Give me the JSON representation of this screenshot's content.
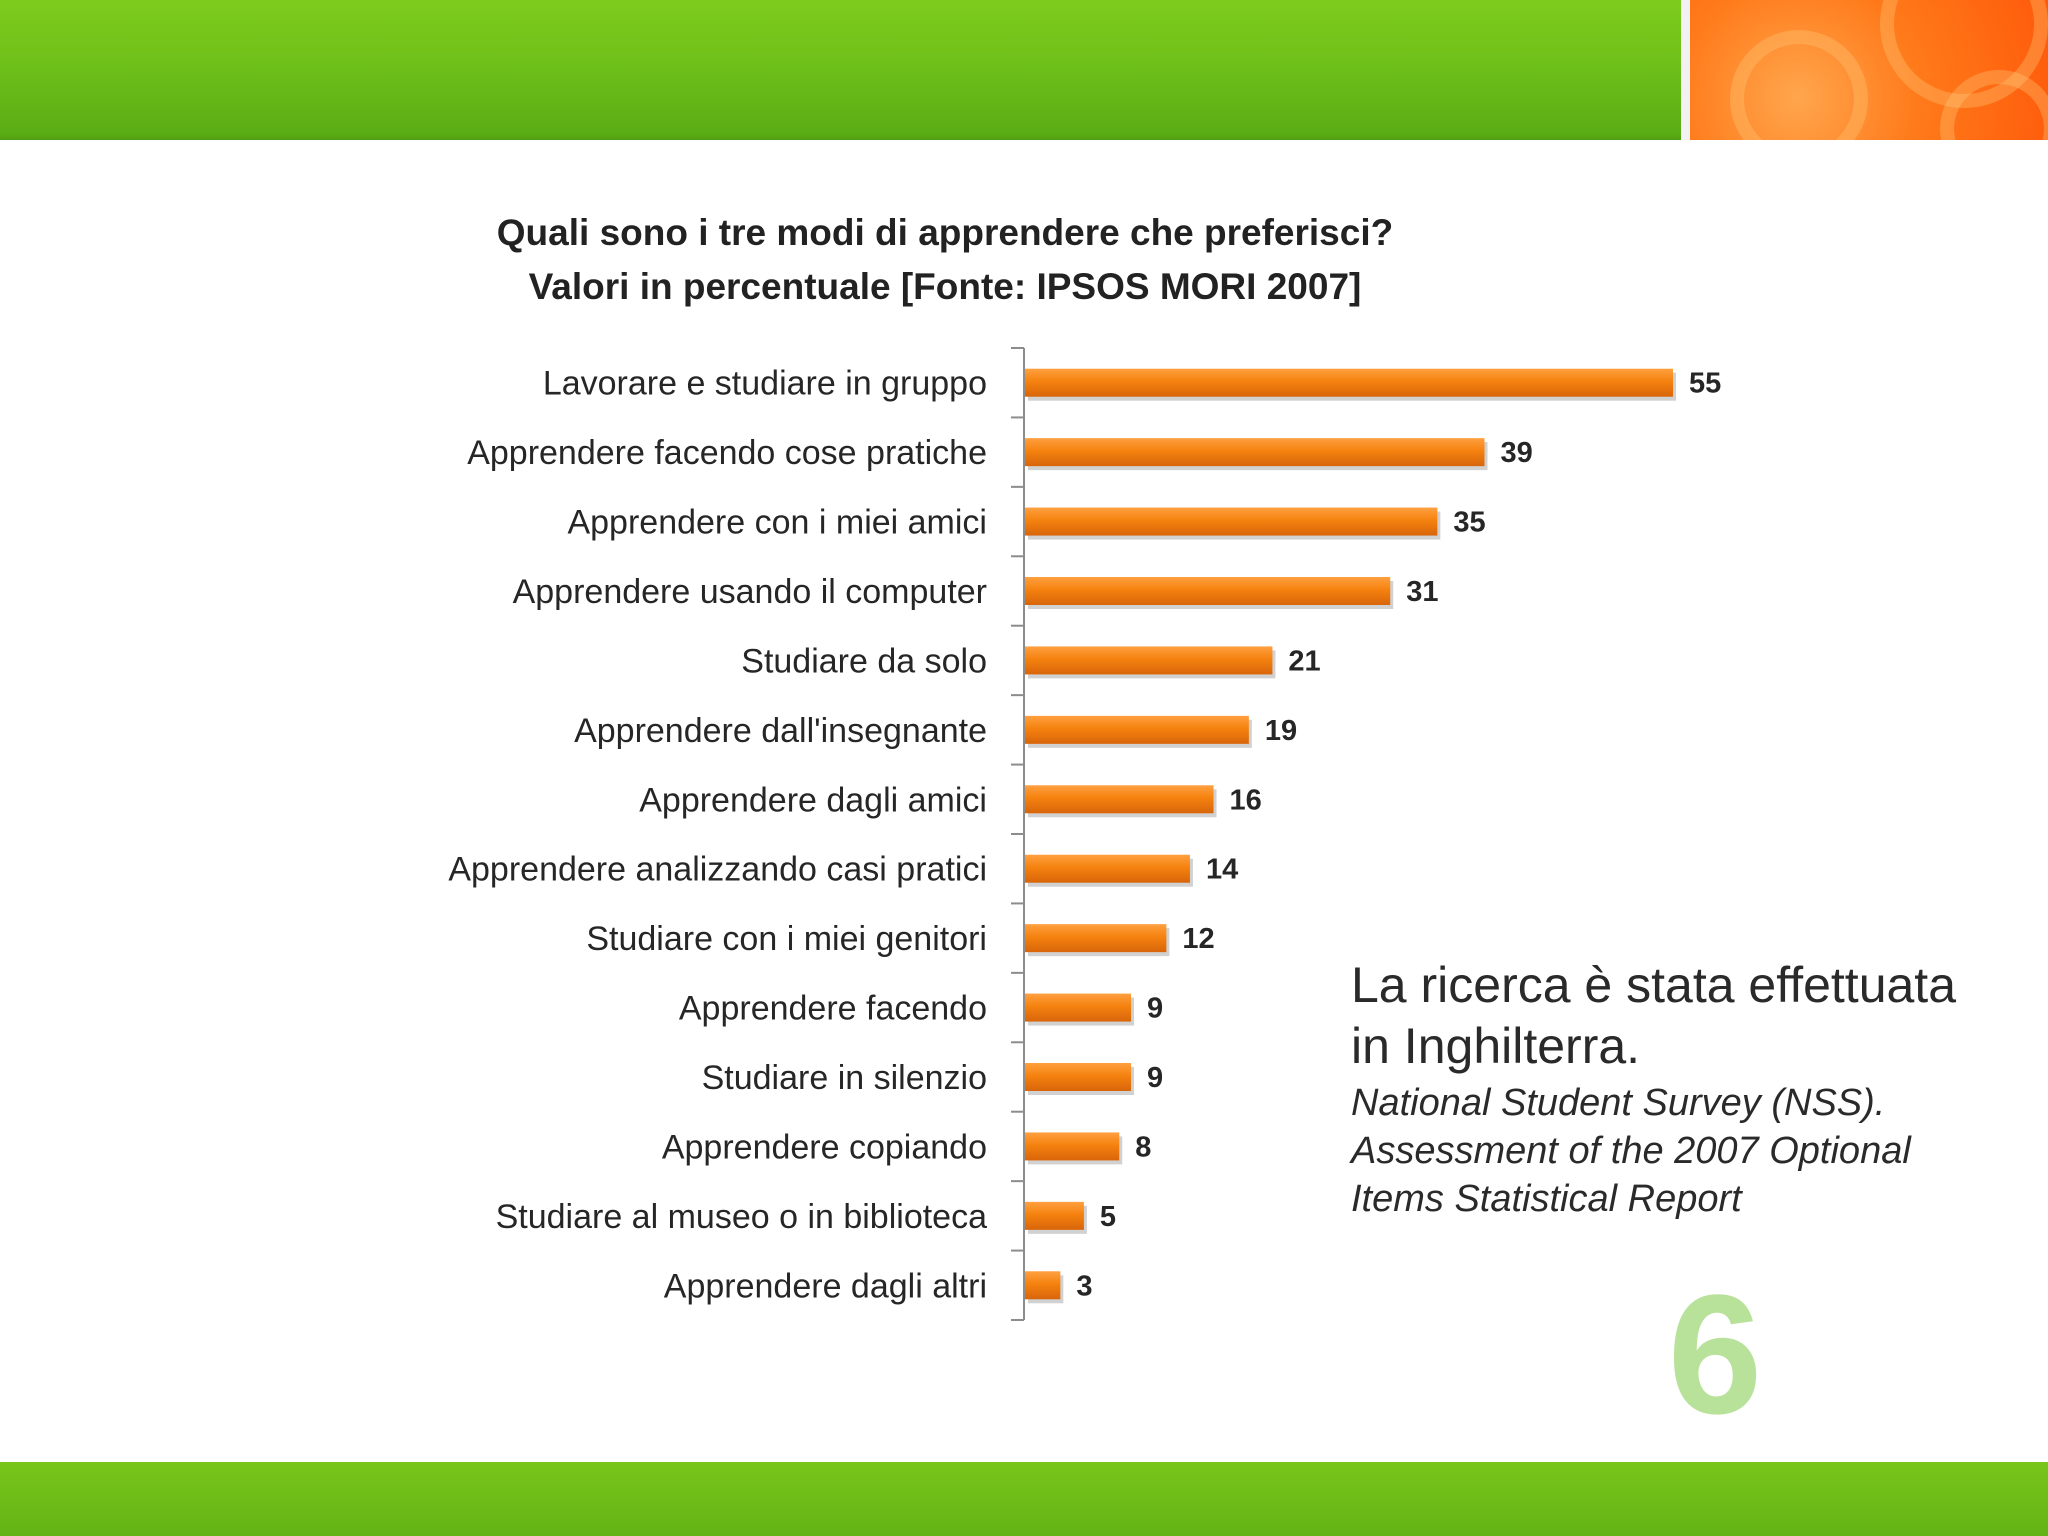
{
  "slide": {
    "note_main_line1": "La ricerca è stata effettuata",
    "note_main_line2": "in Inghilterra.",
    "note_source_line1": "National Student Survey (NSS).",
    "note_source_line2": "Assessment of the 2007 Optional",
    "note_source_line3": "Items Statistical Report",
    "page_number": "6",
    "colors": {
      "green": "#6fc01a",
      "orange": "#ff6a10",
      "bar": "#f27a0c",
      "page_number": "#b8e29a"
    }
  },
  "chart_data": {
    "type": "bar",
    "orientation": "horizontal",
    "title_line1": "Quali sono i tre modi di apprendere che preferisci?",
    "title_line2": "Valori in percentuale [Fonte: IPSOS MORI 2007]",
    "categories": [
      "Lavorare e studiare in gruppo",
      "Apprendere facendo cose pratiche",
      "Apprendere con i miei amici",
      "Apprendere usando il computer",
      "Studiare da solo",
      "Apprendere dall'insegnante",
      "Apprendere dagli amici",
      "Apprendere analizzando casi pratici",
      "Studiare con i miei genitori",
      "Apprendere facendo",
      "Studiare in silenzio",
      "Apprendere copiando",
      "Studiare al museo o in biblioteca",
      "Apprendere dagli altri"
    ],
    "values": [
      55,
      39,
      35,
      31,
      21,
      19,
      16,
      14,
      12,
      9,
      9,
      8,
      5,
      3
    ],
    "xlim": [
      0,
      55
    ],
    "grid": false,
    "legend": "none",
    "data_labels": true
  }
}
